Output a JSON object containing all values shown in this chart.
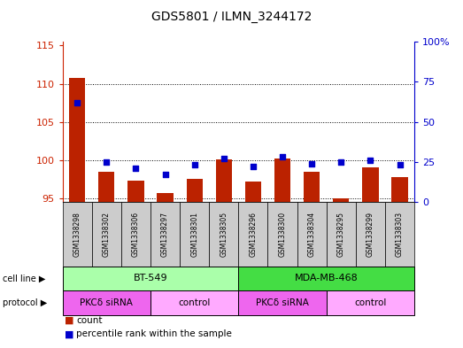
{
  "title": "GDS5801 / ILMN_3244172",
  "samples": [
    "GSM1338298",
    "GSM1338302",
    "GSM1338306",
    "GSM1338297",
    "GSM1338301",
    "GSM1338305",
    "GSM1338296",
    "GSM1338300",
    "GSM1338304",
    "GSM1338295",
    "GSM1338299",
    "GSM1338303"
  ],
  "counts": [
    110.8,
    98.4,
    97.3,
    95.7,
    97.5,
    100.1,
    97.2,
    100.2,
    98.5,
    94.9,
    99.0,
    97.8
  ],
  "percentiles": [
    62,
    25,
    21,
    17,
    23,
    27,
    22,
    28,
    24,
    25,
    26,
    23
  ],
  "ylim_left": [
    94.5,
    115.5
  ],
  "ylim_right": [
    0,
    100
  ],
  "yticks_left": [
    95,
    100,
    105,
    110,
    115
  ],
  "yticks_right": [
    0,
    25,
    50,
    75,
    100
  ],
  "yticklabels_right": [
    "0",
    "25",
    "50",
    "75",
    "100%"
  ],
  "bar_color": "#bb2200",
  "dot_color": "#0000cc",
  "cell_line_groups": [
    {
      "label": "BT-549",
      "start": 0,
      "end": 6,
      "color": "#aaffaa"
    },
    {
      "label": "MDA-MB-468",
      "start": 6,
      "end": 12,
      "color": "#44dd44"
    }
  ],
  "protocol_groups": [
    {
      "label": "PKCδ siRNA",
      "start": 0,
      "end": 3,
      "color": "#ee66ee"
    },
    {
      "label": "control",
      "start": 3,
      "end": 6,
      "color": "#ffaaff"
    },
    {
      "label": "PKCδ siRNA",
      "start": 6,
      "end": 9,
      "color": "#ee66ee"
    },
    {
      "label": "control",
      "start": 9,
      "end": 12,
      "color": "#ffaaff"
    }
  ],
  "cell_line_label": "cell line",
  "protocol_label": "protocol",
  "legend_count_label": "count",
  "legend_percentile_label": "percentile rank within the sample",
  "axis_color_left": "#cc2200",
  "axis_color_right": "#0000cc",
  "sample_bg_color": "#cccccc",
  "border_color": "#000000"
}
